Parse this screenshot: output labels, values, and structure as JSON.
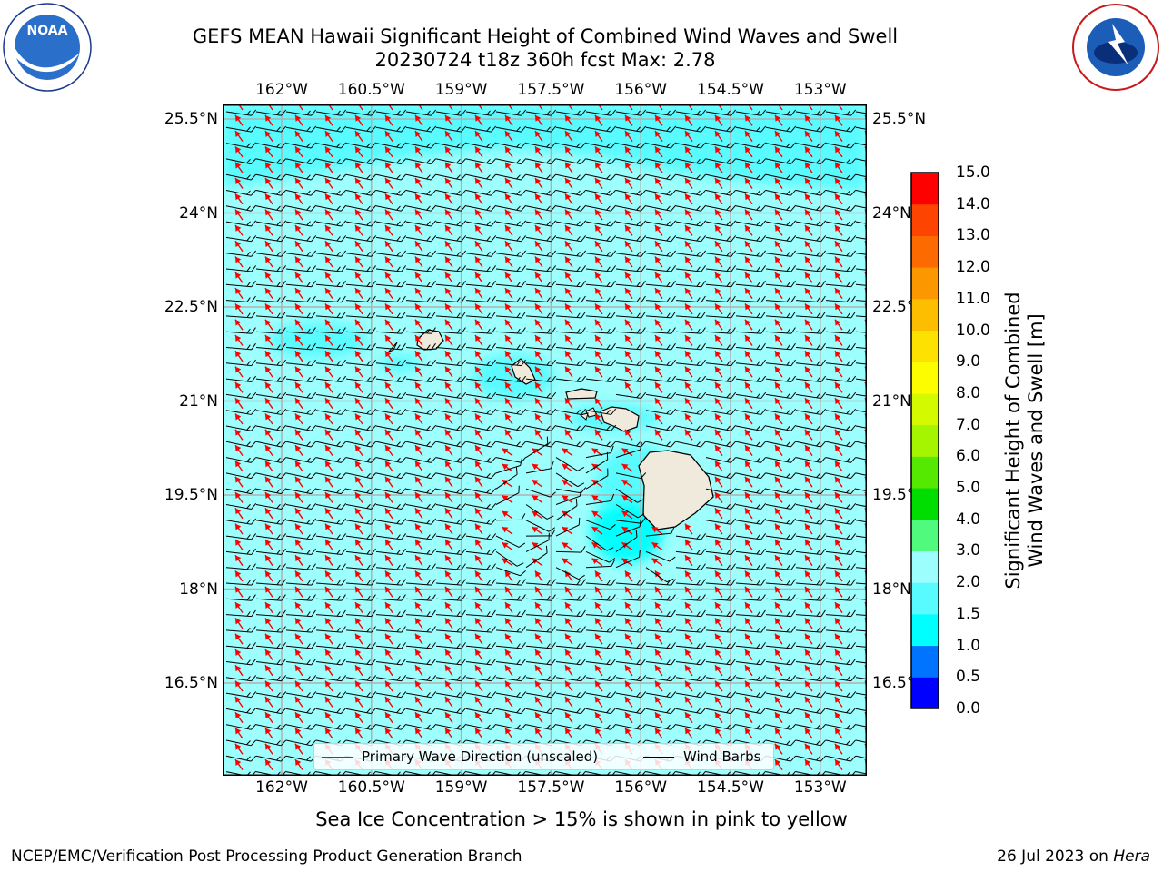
{
  "header": {
    "title_line1": "GEFS MEAN Hawaii Significant Height of Combined Wind Waves and Swell",
    "title_line2": "20230724 t18z 360h fcst   Max: 2.78"
  },
  "logos": {
    "left": "NOAA",
    "right": "NATIONAL WEATHER SERVICE"
  },
  "map": {
    "lon_ticks": [
      "162°W",
      "160.5°W",
      "159°W",
      "157.5°W",
      "156°W",
      "154.5°W",
      "153°W"
    ],
    "lat_ticks": [
      "25.5°N",
      "24°N",
      "22.5°N",
      "21°N",
      "19.5°N",
      "18°N",
      "16.5°N"
    ],
    "lon_values": [
      -162,
      -160.5,
      -159,
      -157.5,
      -156,
      -154.5,
      -153
    ],
    "lat_values": [
      25.5,
      24,
      22.5,
      21,
      19.5,
      18,
      16.5
    ],
    "field_colors": {
      "ocean": "#9dfffd",
      "high_band": "#58fbff",
      "land": "#efeadb",
      "wave_dir": "#ff0000",
      "barb": "#000000"
    }
  },
  "legend": {
    "wave_label": "Primary Wave Direction (unscaled)",
    "barb_label": "Wind Barbs"
  },
  "colorbar": {
    "label_line1": "Significant Height of Combined",
    "label_line2": "Wind Waves and Swell [m]",
    "ticks": [
      "15.0",
      "14.0",
      "13.0",
      "12.0",
      "11.0",
      "10.0",
      "9.0",
      "8.0",
      "7.0",
      "6.0",
      "5.0",
      "4.0",
      "3.0",
      "2.0",
      "1.5",
      "1.0",
      "0.5",
      "0.0"
    ],
    "colors": [
      "#0000ff",
      "#0074ff",
      "#00ffff",
      "#58fbff",
      "#9dfffd",
      "#4ffa7d",
      "#00dd00",
      "#55e800",
      "#a6f500",
      "#d4fa00",
      "#fdfd00",
      "#fde100",
      "#fdbe00",
      "#fd9700",
      "#fd6b00",
      "#fd4400",
      "#fd0000"
    ]
  },
  "note": "Sea Ice Concentration > 15% is shown in pink to yellow",
  "footer": {
    "left": "NCEP/EMC/Verification Post Processing Product Generation Branch",
    "right_date": "26 Jul 2023 on",
    "right_host": "Hera"
  }
}
